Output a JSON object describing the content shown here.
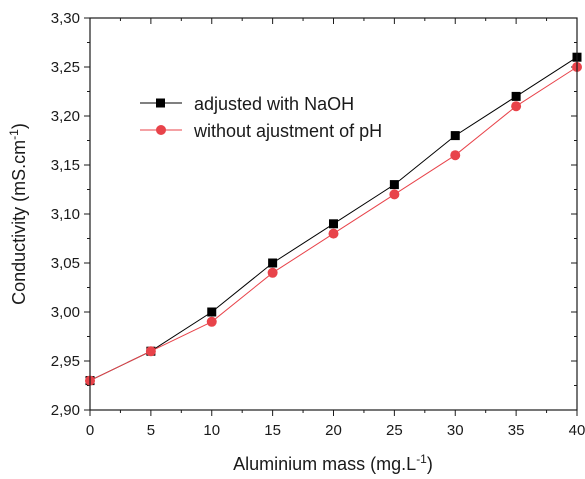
{
  "chart_data": {
    "type": "line",
    "xlabel": "Aluminium mass (mg.L",
    "xlabel_sup": "-1",
    "xlabel_end": ")",
    "ylabel": "Conductivity (mS.cm",
    "ylabel_sup": "-1",
    "ylabel_end": ")",
    "xlim": [
      0,
      40
    ],
    "ylim": [
      2.9,
      3.3
    ],
    "x_ticks": [
      0,
      5,
      10,
      15,
      20,
      25,
      30,
      35,
      40
    ],
    "y_ticks": [
      2.9,
      2.95,
      3.0,
      3.05,
      3.1,
      3.15,
      3.2,
      3.25,
      3.3
    ],
    "x_tick_labels": [
      "0",
      "5",
      "10",
      "15",
      "20",
      "25",
      "30",
      "35",
      "40"
    ],
    "y_tick_labels": [
      "2,90",
      "2,95",
      "3,00",
      "3,05",
      "3,10",
      "3,15",
      "3,20",
      "3,25",
      "3,30"
    ],
    "grid": false,
    "legend_position": "top-left",
    "x": [
      0,
      5,
      10,
      15,
      20,
      25,
      30,
      35,
      40
    ],
    "series": [
      {
        "name": "adjusted with NaOH",
        "marker": "square",
        "color": "#000000",
        "values": [
          2.93,
          2.96,
          3.0,
          3.05,
          3.09,
          3.13,
          3.18,
          3.22,
          3.26
        ]
      },
      {
        "name": "without ajustment of pH",
        "marker": "circle",
        "color": "#e8434a",
        "values": [
          2.93,
          2.96,
          2.99,
          3.04,
          3.08,
          3.12,
          3.16,
          3.21,
          3.25
        ]
      }
    ]
  }
}
